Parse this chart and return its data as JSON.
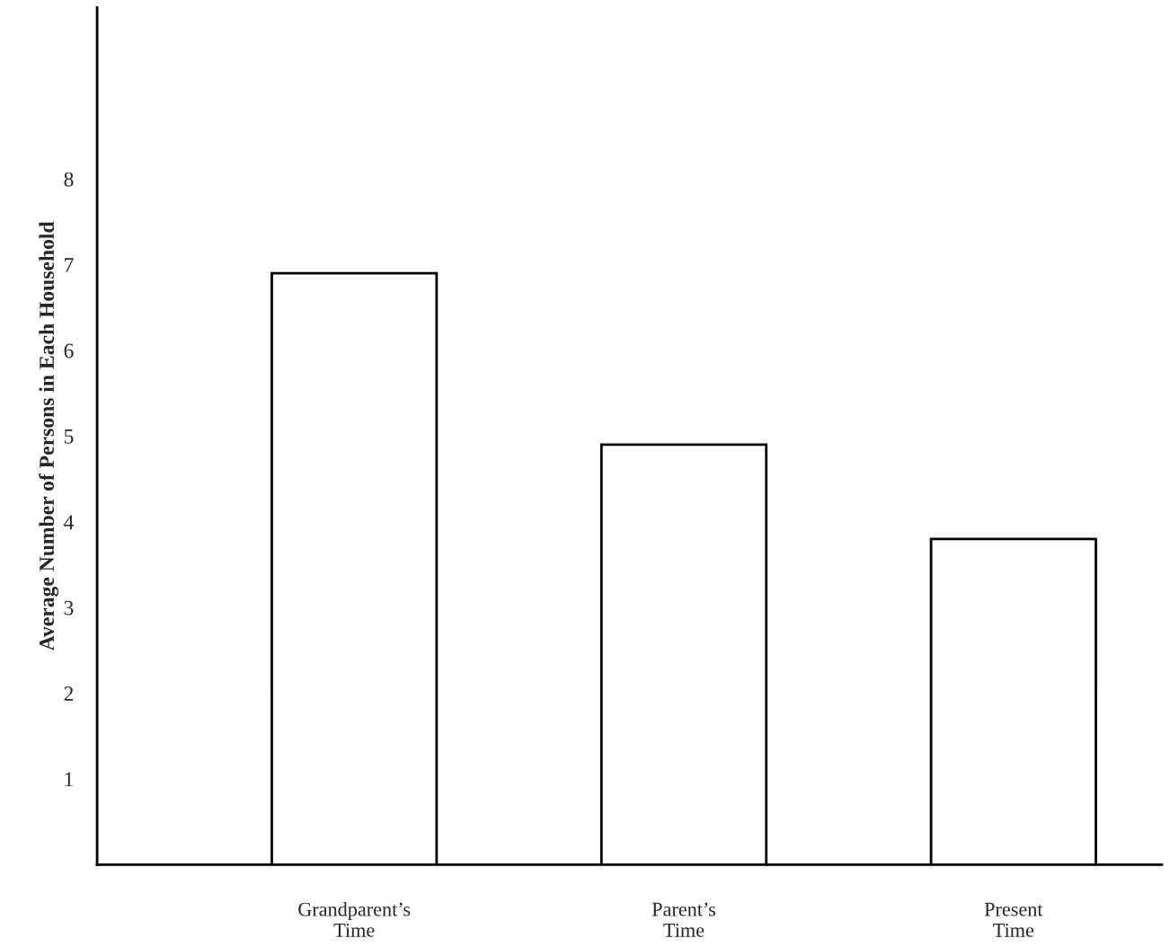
{
  "chart_data": {
    "type": "bar",
    "ylabel": "Average Number of Persons in Each Household",
    "categories": [
      "Grandparent’s\nTime",
      "Parent’s\nTime",
      "Present\nTime"
    ],
    "values": [
      6.9,
      4.9,
      3.8
    ],
    "color": "#ffffff",
    "ylim": [
      0,
      10
    ],
    "yticks": [
      1,
      2,
      3,
      4,
      5,
      6,
      7,
      8
    ],
    "grid": false
  }
}
